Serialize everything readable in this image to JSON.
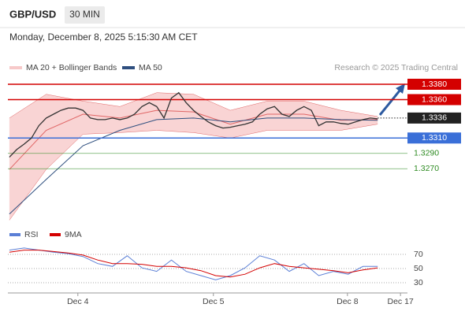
{
  "chart_data": [
    {
      "type": "line",
      "title": "GBP/USD",
      "subtitle": "30 MIN",
      "date": "Monday, December 8, 2025 5:15:30 AM CET",
      "credit": "Research © 2025 Trading Central",
      "color": "#333333",
      "x": [
        0,
        1,
        2,
        3,
        4,
        5,
        6,
        7,
        8,
        9,
        10,
        11,
        12,
        13,
        14,
        15,
        16,
        17,
        18,
        19,
        20,
        21,
        22,
        23,
        24,
        25,
        26,
        27,
        28,
        29,
        30,
        31,
        32,
        33,
        34,
        35,
        36,
        37,
        38,
        39,
        40,
        41,
        42,
        43,
        44,
        45,
        46,
        47,
        48,
        49,
        50
      ],
      "values": [
        1.3285,
        1.3295,
        1.3302,
        1.331,
        1.3326,
        1.3336,
        1.3341,
        1.3346,
        1.3349,
        1.3349,
        1.3346,
        1.3336,
        1.3334,
        1.3334,
        1.3336,
        1.3334,
        1.3336,
        1.3341,
        1.3351,
        1.3356,
        1.3351,
        1.3336,
        1.3362,
        1.3369,
        1.3356,
        1.3346,
        1.3338,
        1.3331,
        1.3326,
        1.3323,
        1.3324,
        1.3326,
        1.3328,
        1.3331,
        1.3341,
        1.3348,
        1.3351,
        1.3341,
        1.3338,
        1.3346,
        1.3351,
        1.3346,
        1.3326,
        1.3331,
        1.3331,
        1.3329,
        1.3328,
        1.3331,
        1.3334,
        1.3336,
        1.3335
      ],
      "series": [
        {
          "name": "MA 20 + Bollinger Bands",
          "color": "#e06666",
          "band_color": "#f7c9c9",
          "x": [
            0,
            5,
            10,
            15,
            20,
            25,
            30,
            35,
            40,
            45,
            50
          ],
          "values": [
            1.3269,
            1.332,
            1.3341,
            1.3336,
            1.3346,
            1.3344,
            1.3328,
            1.3341,
            1.3341,
            1.3333,
            1.3334
          ],
          "upper": [
            1.3336,
            1.3367,
            1.3358,
            1.3351,
            1.3369,
            1.3367,
            1.3346,
            1.3358,
            1.3358,
            1.3346,
            1.3338
          ],
          "lower": [
            1.3203,
            1.3269,
            1.3315,
            1.3317,
            1.332,
            1.3317,
            1.331,
            1.332,
            1.332,
            1.332,
            1.3328
          ]
        },
        {
          "name": "MA 50",
          "color": "#2f4f7f",
          "x": [
            0,
            5,
            10,
            15,
            20,
            25,
            30,
            35,
            40,
            45,
            50
          ],
          "values": [
            1.3211,
            1.3256,
            1.33,
            1.332,
            1.3334,
            1.3336,
            1.3331,
            1.3336,
            1.3336,
            1.3334,
            1.3333
          ]
        }
      ],
      "levels": [
        {
          "value": 1.338,
          "label": "1.3380",
          "color": "#d40000",
          "style": "filled"
        },
        {
          "value": 1.336,
          "label": "1.3360",
          "color": "#d40000",
          "style": "filled"
        },
        {
          "value": 1.3336,
          "label": "1.3336",
          "color": "#222222",
          "style": "current"
        },
        {
          "value": 1.331,
          "label": "1.3310",
          "color": "#3a6fd8",
          "style": "filled"
        },
        {
          "value": 1.329,
          "label": "1.3290",
          "color": "#2e8b22",
          "style": "text"
        },
        {
          "value": 1.327,
          "label": "1.3270",
          "color": "#2e8b22",
          "style": "text"
        }
      ],
      "xlim": [
        -0.2,
        53.3
      ],
      "ylim": [
        1.32,
        1.339
      ]
    },
    {
      "type": "line",
      "series": [
        {
          "name": "RSI",
          "color": "#5b7fd6",
          "x": [
            0,
            2,
            4,
            6,
            8,
            10,
            12,
            14,
            16,
            18,
            20,
            22,
            24,
            26,
            28,
            30,
            32,
            34,
            36,
            38,
            40,
            42,
            44,
            46,
            48,
            50
          ],
          "values": [
            76,
            79,
            76,
            73,
            71,
            67,
            57,
            53,
            68,
            51,
            46,
            62,
            46,
            40,
            34,
            40,
            51,
            68,
            62,
            46,
            57,
            40,
            46,
            42,
            53,
            53
          ]
        },
        {
          "name": "9MA",
          "color": "#d40000",
          "x": [
            0,
            2,
            4,
            6,
            8,
            10,
            12,
            14,
            16,
            18,
            20,
            22,
            24,
            26,
            28,
            30,
            32,
            34,
            36,
            38,
            40,
            42,
            44,
            46,
            48,
            50
          ],
          "values": [
            73,
            76,
            76,
            74,
            72,
            69,
            62,
            57,
            57,
            56,
            53,
            53,
            51,
            47,
            40,
            38,
            42,
            51,
            57,
            53,
            51,
            49,
            47,
            44,
            48,
            51
          ]
        }
      ],
      "xlim": [
        -0.2,
        53.3
      ],
      "xticks": [
        {
          "value": 9.3,
          "label": "Dec 4"
        },
        {
          "value": 27.7,
          "label": "Dec 5"
        },
        {
          "value": 45.9,
          "label": "Dec 8"
        },
        {
          "value": 53.1,
          "label": "Dec 17"
        }
      ],
      "ylim": [
        20,
        90
      ],
      "yticks": [
        70,
        50,
        30
      ]
    }
  ]
}
